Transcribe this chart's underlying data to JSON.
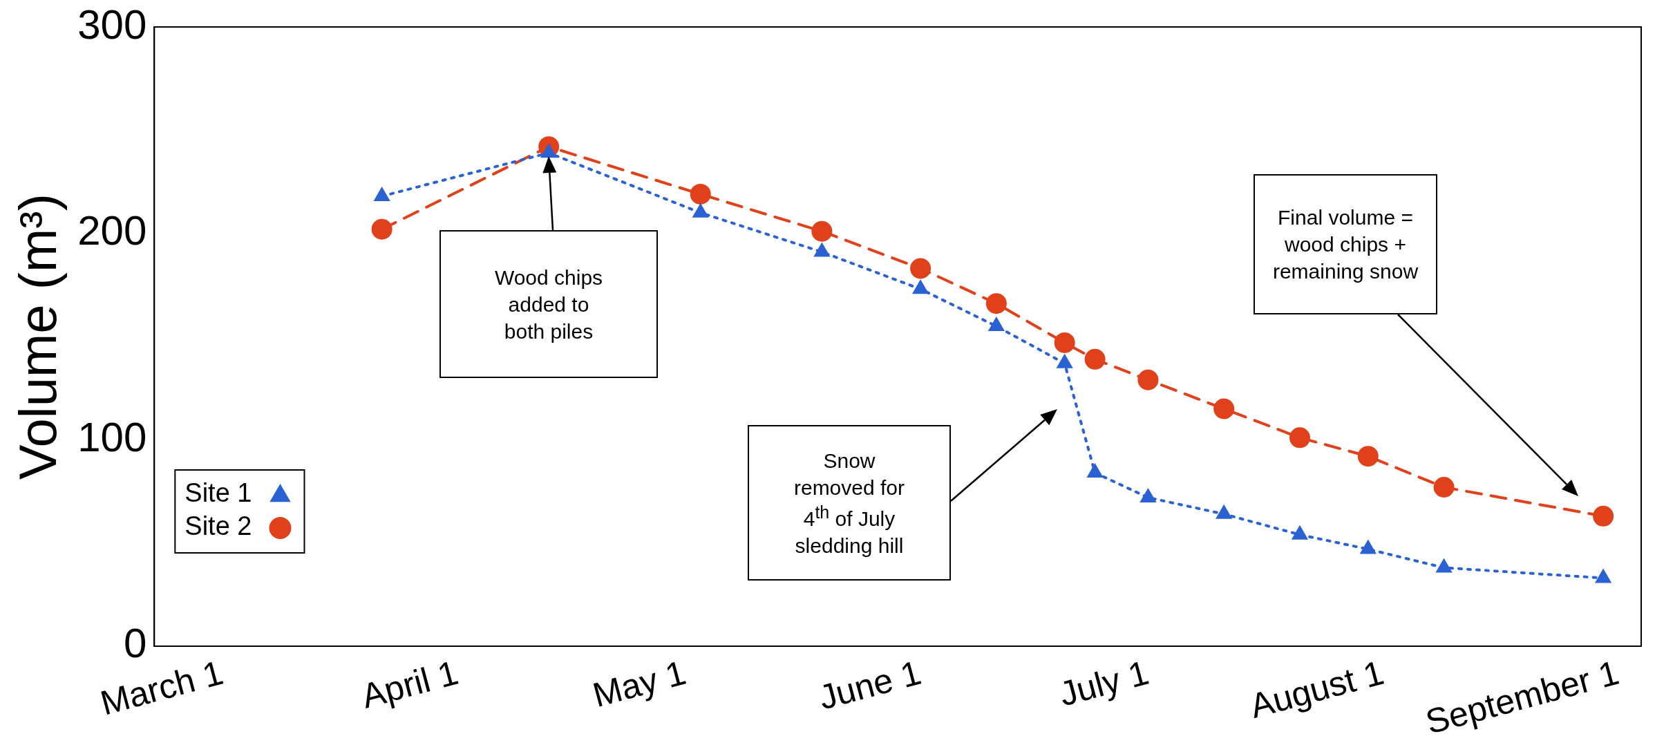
{
  "chart_data": {
    "type": "line",
    "ylabel": "Volume (m³)",
    "x": [
      "--03-22",
      "--04-13",
      "--05-03",
      "--05-19",
      "--06-01",
      "--06-11",
      "--06-20",
      "--06-24",
      "--07-01",
      "--07-11",
      "--07-21",
      "--07-30",
      "--08-09",
      "--08-30"
    ],
    "series": [
      {
        "name": "Site 1",
        "color": "#2a62d4",
        "marker": "triangle",
        "line_style": "dotted",
        "values": [
          218,
          239,
          210,
          191,
          173,
          155,
          137,
          84,
          72,
          64,
          54,
          47,
          38,
          33
        ]
      },
      {
        "name": "Site 2",
        "color": "#e0401a",
        "marker": "circle",
        "line_style": "dashed",
        "values": [
          202,
          242,
          219,
          201,
          183,
          166,
          147,
          139,
          129,
          115,
          101,
          92,
          77,
          63
        ]
      }
    ],
    "xlim": [
      "--02-20",
      "--09-04"
    ],
    "xticks": [
      {
        "value": "--03-01",
        "label": "March 1"
      },
      {
        "value": "--04-01",
        "label": "April 1"
      },
      {
        "value": "--05-01",
        "label": "May 1"
      },
      {
        "value": "--06-01",
        "label": "June 1"
      },
      {
        "value": "--07-01",
        "label": "July 1"
      },
      {
        "value": "--08-01",
        "label": "August 1"
      },
      {
        "value": "--09-01",
        "label": "September 1"
      }
    ],
    "ylim": [
      0,
      300
    ],
    "yticks": [
      0,
      100,
      200,
      300
    ],
    "grid": false,
    "legend": "bottom left",
    "annotations": [
      "Wood chips added to both piles",
      "Snow removed for 4$^{th}$ of July sledding hill",
      "Final volume = wood chips + remaining snow"
    ]
  }
}
